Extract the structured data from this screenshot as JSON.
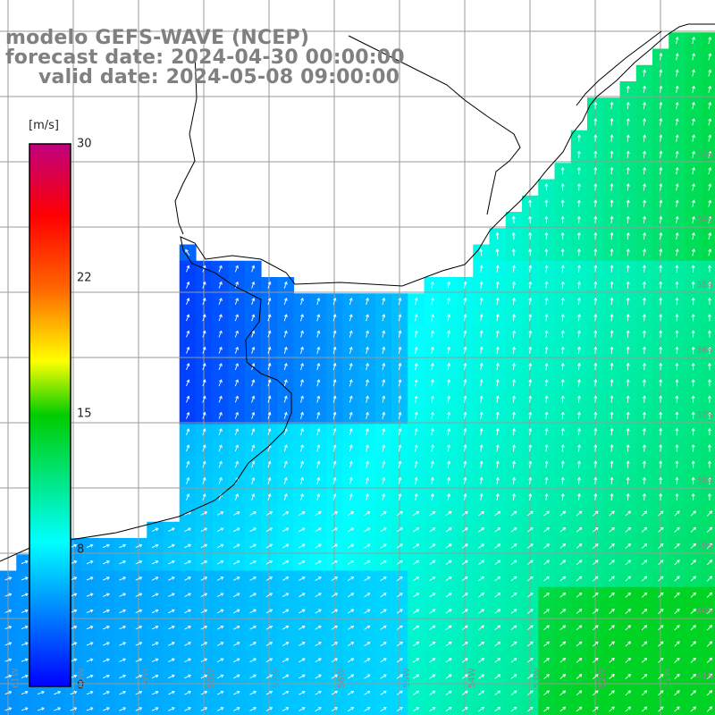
{
  "header": {
    "line1": "modelo GEFS-WAVE (NCEP)",
    "line2": "forecast date: 2024-04-30 00:00:00",
    "line3": "valid date: 2024-05-08 09:00:00"
  },
  "colorbar": {
    "unit": "[m/s]",
    "ticks": [
      {
        "label": "30",
        "value": 30
      },
      {
        "label": "22",
        "value": 22
      },
      {
        "label": "15",
        "value": 15
      },
      {
        "label": "8",
        "value": 8
      },
      {
        "label": "0",
        "value": 0
      }
    ],
    "stops": [
      {
        "value": 0,
        "color": "#0000ff"
      },
      {
        "value": 4,
        "color": "#0080ff"
      },
      {
        "value": 8,
        "color": "#00ffff"
      },
      {
        "value": 15,
        "color": "#00cc00"
      },
      {
        "value": 18,
        "color": "#ffff00"
      },
      {
        "value": 22,
        "color": "#ff6600"
      },
      {
        "value": 26,
        "color": "#ff0000"
      },
      {
        "value": 30,
        "color": "#c0007f"
      }
    ]
  },
  "map": {
    "field": "wind speed and direction",
    "lat_labels": [
      "33S",
      "34S",
      "35S",
      "36S",
      "37S",
      "38S",
      "39S",
      "40S",
      "41S"
    ],
    "lon_labels": [
      "61W",
      "60W",
      "59W",
      "58W",
      "57W",
      "56W",
      "55W",
      "54W",
      "53W",
      "52W",
      "51W"
    ],
    "land_color": "#ffffff",
    "grid_color": "#9a9a9a",
    "coast_color": "#000000",
    "arrow_color": "#ffffff"
  }
}
